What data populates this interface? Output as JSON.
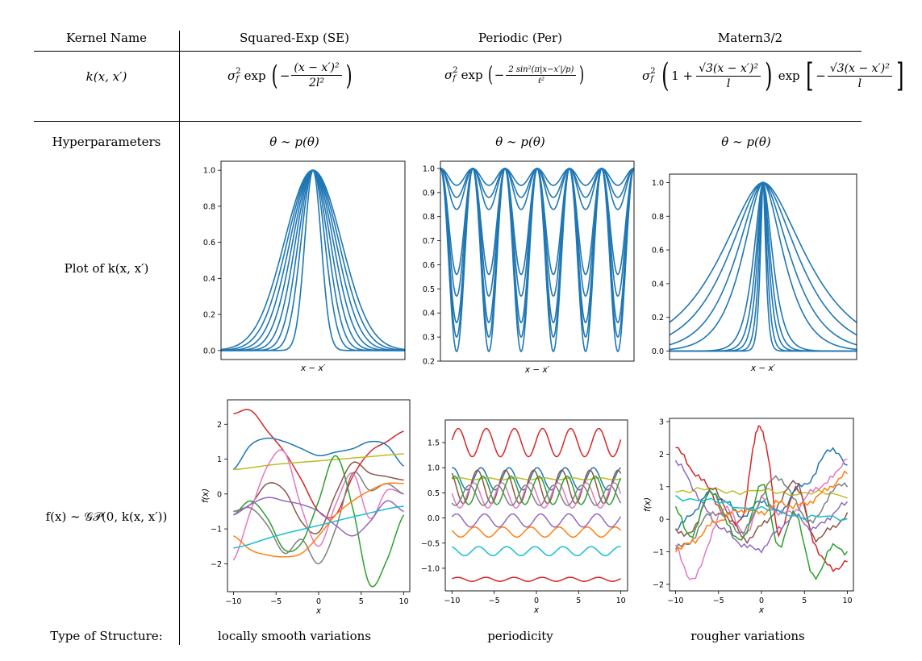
{
  "table": {
    "header": {
      "kernel_name": "Kernel Name",
      "se": "Squared-Exp (SE)",
      "per": "Periodic (Per)",
      "matern": "Matern3/2"
    },
    "row_labels": {
      "kxx": "k(x, x′)",
      "hyper": "Hyperparameters",
      "plot_k": "Plot of k(x, x′)",
      "fx": "f(x) ∼ 𝒢𝒫(0, k(x, x′))",
      "structure": "Type of Structure:"
    },
    "hyper_prior": {
      "se": "θ ∼ p(θ)",
      "per": "θ ∼ p(θ)",
      "matern": "θ ∼ p(θ)"
    },
    "formulas": {
      "sigma": "σ",
      "f_sub": "f",
      "two": "2",
      "exp": "exp",
      "minus": "−",
      "se_num": "(x − x′)²",
      "se_den": "2l²",
      "per_num": "2 sin²(π|x−x′|/p)",
      "per_den": "ℓ²",
      "mat_one": "1 +",
      "mat_num": "√3(x − x′)²",
      "mat_den": "l"
    },
    "structure": {
      "se": "locally smooth variations",
      "per": "periodicity",
      "matern": "rougher variations"
    }
  },
  "colors": {
    "kernel": "#1f77b4",
    "samples": [
      "#d62728",
      "#1f77b4",
      "#bcbd22",
      "#8c564b",
      "#e377c2",
      "#2ca02c",
      "#7f7f7f",
      "#9467bd",
      "#ff7f0e",
      "#17becf"
    ]
  },
  "chart_data": [
    {
      "id": "se_kernel",
      "type": "line",
      "title": "",
      "xlabel": "x − x′",
      "ylabel": "",
      "yticks": [
        "0.0",
        "0.2",
        "0.4",
        "0.6",
        "0.8",
        "1.0"
      ],
      "ylim": [
        -0.05,
        1.05
      ],
      "xlim": [
        -10,
        10
      ],
      "kernel": "se",
      "lengthscales": [
        0.9,
        1.3,
        1.6,
        1.9,
        2.2,
        2.5,
        2.8,
        3.1
      ]
    },
    {
      "id": "per_kernel",
      "type": "line",
      "title": "",
      "xlabel": "x − x′",
      "ylabel": "",
      "yticks": [
        "0.2",
        "0.3",
        "0.4",
        "0.5",
        "0.6",
        "0.7",
        "0.8",
        "0.9",
        "1.0"
      ],
      "ylim": [
        0.2,
        1.03
      ],
      "xlim": [
        -10,
        10
      ],
      "kernel": "periodic",
      "period": 3.33,
      "minima": [
        0.24,
        0.3,
        0.36,
        0.47,
        0.56,
        0.83,
        0.88,
        0.93
      ]
    },
    {
      "id": "matern_kernel",
      "type": "line",
      "title": "",
      "xlabel": "x − x′",
      "ylabel": "",
      "yticks": [
        "0.0",
        "0.2",
        "0.4",
        "0.6",
        "0.8",
        "1.0"
      ],
      "ylim": [
        -0.05,
        1.05
      ],
      "xlim": [
        -10,
        10
      ],
      "kernel": "matern32",
      "lengthscales": [
        0.35,
        0.5,
        0.7,
        0.9,
        1.2,
        2.6,
        3.4,
        4.4,
        5.4
      ]
    },
    {
      "id": "se_samples",
      "type": "line",
      "title": "",
      "xlabel": "x",
      "ylabel": "f(x)",
      "xticks": [
        "−10",
        "−5",
        "0",
        "5",
        "10"
      ],
      "yticks": [
        "−2",
        "−1",
        "0",
        "1",
        "2"
      ],
      "ylim": [
        -2.8,
        2.7
      ],
      "xlim": [
        -10.7,
        10.7
      ],
      "series": [
        {
          "name": "s1",
          "x": [
            -10,
            -8,
            -6,
            -4,
            -2,
            0,
            2,
            4,
            6,
            8,
            10
          ],
          "values": [
            2.3,
            2.4,
            1.8,
            1.2,
            0.4,
            -0.5,
            -0.6,
            0.5,
            1.2,
            1.5,
            1.8
          ]
        },
        {
          "name": "s2",
          "x": [
            -10,
            -8,
            -6,
            -4,
            -2,
            0,
            2,
            4,
            6,
            8,
            10
          ],
          "values": [
            0.7,
            1.4,
            1.6,
            1.5,
            1.3,
            1.1,
            1.2,
            1.3,
            1.5,
            1.4,
            0.8
          ]
        },
        {
          "name": "s3",
          "x": [
            -10,
            -5,
            0,
            5,
            10
          ],
          "values": [
            0.7,
            0.85,
            0.95,
            1.05,
            1.15
          ]
        },
        {
          "name": "s4",
          "x": [
            -10,
            -8,
            -6,
            -4,
            -2,
            0,
            2,
            4,
            6,
            8,
            10
          ],
          "values": [
            -0.5,
            -0.3,
            0.3,
            0.1,
            -0.8,
            -1.1,
            0.0,
            0.9,
            0.6,
            0.5,
            0.4
          ]
        },
        {
          "name": "s5",
          "x": [
            -10,
            -8,
            -6,
            -4,
            -2,
            0,
            2,
            4,
            6,
            8,
            10
          ],
          "values": [
            -1.9,
            -0.5,
            0.8,
            1.2,
            -0.4,
            -1.5,
            -0.3,
            0.6,
            -0.7,
            0.1,
            0.0
          ]
        },
        {
          "name": "s6",
          "x": [
            -10,
            -8,
            -6,
            -4,
            -2,
            0,
            2,
            4,
            6,
            8,
            10
          ],
          "values": [
            -0.6,
            -0.2,
            -0.7,
            -1.6,
            -1.4,
            -0.2,
            1.1,
            -0.4,
            -2.6,
            -1.9,
            -0.6
          ]
        },
        {
          "name": "s7",
          "x": [
            -10,
            -8,
            -6,
            -4,
            -2,
            0,
            2,
            4,
            6,
            8,
            10
          ],
          "values": [
            -0.5,
            -0.4,
            -0.9,
            -1.7,
            -1.3,
            -2.0,
            -1.0,
            0.6,
            0.1,
            0.3,
            0.0
          ]
        },
        {
          "name": "s8",
          "x": [
            -10,
            -8,
            -6,
            -4,
            -2,
            0,
            2,
            4,
            6,
            8,
            10
          ],
          "values": [
            -0.6,
            -0.3,
            -0.1,
            -0.2,
            -0.3,
            -0.5,
            -0.9,
            -1.2,
            -0.8,
            -0.2,
            -0.5
          ]
        },
        {
          "name": "s9",
          "x": [
            -10,
            -8,
            -6,
            -4,
            -2,
            0,
            2,
            4,
            6,
            8,
            10
          ],
          "values": [
            -1.2,
            -1.6,
            -1.75,
            -1.8,
            -1.7,
            -1.2,
            -0.6,
            -0.2,
            0.1,
            0.3,
            0.3
          ]
        },
        {
          "name": "s10",
          "x": [
            -10,
            -5,
            0,
            5,
            10
          ],
          "values": [
            -1.55,
            -1.2,
            -0.9,
            -0.6,
            -0.35
          ]
        }
      ]
    },
    {
      "id": "per_samples",
      "type": "line",
      "title": "",
      "xlabel": "x",
      "ylabel": "",
      "xticks": [
        "−10",
        "−5",
        "0",
        "5",
        "10"
      ],
      "yticks": [
        "−1.0",
        "−0.5",
        "0.0",
        "0.5",
        "1.0",
        "1.5"
      ],
      "ylim": [
        -1.45,
        1.95
      ],
      "xlim": [
        -10.8,
        10.8
      ],
      "series": [
        {
          "name": "s1",
          "mean": 1.5,
          "amp": 0.28,
          "phase": 0.2
        },
        {
          "name": "s2",
          "mean": 0.78,
          "amp": 0.22,
          "phase": 1.4
        },
        {
          "name": "s3",
          "mean": 0.78,
          "amp": 0.02,
          "phase": 0.0
        },
        {
          "name": "s4",
          "mean": 0.62,
          "amp": 0.33,
          "phase": 2.2
        },
        {
          "name": "s5",
          "mean": 0.45,
          "amp": 0.25,
          "phase": 3.0
        },
        {
          "name": "s6",
          "mean": 0.55,
          "amp": 0.28,
          "phase": 1.0
        },
        {
          "name": "s7",
          "mean": 0.45,
          "amp": 0.2,
          "phase": 4.0
        },
        {
          "name": "s8",
          "mean": -0.05,
          "amp": 0.13,
          "phase": 0.6
        },
        {
          "name": "s9",
          "mean": -0.28,
          "amp": 0.1,
          "phase": 2.8
        },
        {
          "name": "s10",
          "mean": -0.66,
          "amp": 0.09,
          "phase": 1.9
        },
        {
          "name": "s11",
          "mean": -1.22,
          "amp": 0.04,
          "phase": 0.3
        }
      ],
      "period": 3.33
    },
    {
      "id": "matern_samples",
      "type": "line",
      "title": "",
      "xlabel": "x",
      "ylabel": "f(x)",
      "xticks": [
        "−10",
        "−5",
        "0",
        "5",
        "10"
      ],
      "yticks": [
        "−2",
        "−1",
        "0",
        "1",
        "2",
        "3"
      ],
      "ylim": [
        -2.2,
        3.1
      ],
      "xlim": [
        -10.7,
        10.7
      ],
      "series": [
        {
          "name": "s1",
          "x": [
            -10,
            -8,
            -6,
            -4,
            -2,
            -1,
            0,
            1,
            2,
            4,
            6,
            8,
            10
          ],
          "values": [
            2.2,
            1.5,
            0.9,
            0.0,
            0.2,
            2.2,
            2.8,
            1.5,
            -0.5,
            1.0,
            -0.6,
            -1.5,
            -1.3
          ]
        },
        {
          "name": "s2",
          "x": [
            -10,
            -8,
            -6,
            -4,
            -2,
            0,
            2,
            4,
            6,
            8,
            10
          ],
          "values": [
            -0.3,
            0.2,
            0.8,
            0.5,
            0.1,
            0.6,
            0.2,
            0.9,
            1.3,
            2.2,
            1.6
          ]
        },
        {
          "name": "s3",
          "x": [
            -10,
            -5,
            0,
            5,
            10
          ],
          "values": [
            0.9,
            0.88,
            0.85,
            0.8,
            0.75
          ]
        },
        {
          "name": "s4",
          "x": [
            -10,
            -8,
            -6,
            -4,
            -2,
            0,
            2,
            4,
            6,
            8,
            10
          ],
          "values": [
            -0.3,
            -0.4,
            0.9,
            0.3,
            -0.6,
            -0.2,
            0.4,
            1.2,
            -0.5,
            -0.3,
            0.1
          ]
        },
        {
          "name": "s5",
          "x": [
            -10,
            -8,
            -6,
            -4,
            -2,
            0,
            2,
            4,
            6,
            8,
            10
          ],
          "values": [
            -0.8,
            -1.9,
            -0.6,
            0.4,
            -0.5,
            0.6,
            0.2,
            0.3,
            0.9,
            1.2,
            1.9
          ]
        },
        {
          "name": "s6",
          "x": [
            -10,
            -8,
            -6,
            -4,
            -2,
            0,
            2,
            4,
            6,
            8,
            10
          ],
          "values": [
            0.3,
            -0.5,
            0.9,
            -0.1,
            -0.6,
            1.1,
            -0.8,
            0.2,
            -1.8,
            -0.9,
            -1.0
          ]
        },
        {
          "name": "s7",
          "x": [
            -10,
            -8,
            -6,
            -4,
            -2,
            0,
            2,
            4,
            6,
            8,
            10
          ],
          "values": [
            -0.9,
            -0.6,
            0.2,
            0.0,
            -0.4,
            0.7,
            1.3,
            0.5,
            -0.1,
            0.8,
            1.1
          ]
        },
        {
          "name": "s8",
          "x": [
            -10,
            -8,
            -6,
            -4,
            -2,
            0,
            2,
            4,
            6,
            8,
            10
          ],
          "values": [
            1.8,
            1.0,
            0.1,
            -0.4,
            -0.8,
            -0.9,
            -0.3,
            0.1,
            -0.3,
            0.1,
            0.5
          ]
        },
        {
          "name": "s9",
          "x": [
            -10,
            -8,
            -6,
            -4,
            -2,
            0,
            2,
            4,
            6,
            8,
            10
          ],
          "values": [
            -0.9,
            -0.7,
            -0.2,
            0.1,
            0.3,
            0.2,
            0.5,
            0.4,
            0.6,
            1.0,
            1.4
          ]
        },
        {
          "name": "s10",
          "x": [
            -10,
            -5,
            0,
            5,
            10
          ],
          "values": [
            0.7,
            0.5,
            0.3,
            0.1,
            0.0
          ]
        }
      ]
    }
  ]
}
